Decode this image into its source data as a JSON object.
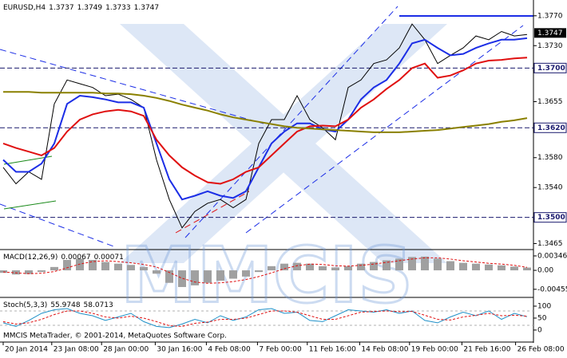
{
  "chart_data": [
    {
      "type": "line",
      "symbol": "EURUSD,H4",
      "ohlc": [
        1.3737,
        1.3749,
        1.3733,
        1.3747
      ],
      "x": [
        0,
        1,
        2,
        3,
        4,
        5,
        6,
        7,
        8,
        9,
        10,
        11,
        12,
        13,
        14,
        15,
        16,
        17,
        18,
        19,
        20,
        21,
        22,
        23,
        24,
        25,
        26,
        27,
        28,
        29,
        30,
        31,
        32,
        33,
        34,
        35,
        36,
        37,
        38,
        39,
        40,
        41
      ],
      "xlim": [
        -0.25,
        41.5
      ],
      "ylim": [
        1.3458,
        1.3789
      ],
      "yticks": [
        {
          "value": 1.377,
          "label": "1.3770"
        },
        {
          "value": 1.373,
          "label": "1.3730"
        },
        1.3655,
        {
          "value": 1.358,
          "label": "1.3580"
        },
        {
          "value": 1.354,
          "label": "1.3540"
        },
        1.3465
      ],
      "levels": [
        {
          "value": 1.37,
          "label": "1.3700"
        },
        {
          "value": 1.362,
          "label": "1.3620"
        },
        {
          "value": 1.35,
          "label": "1.3500"
        }
      ],
      "xticks": [
        {
          "value": 0,
          "label": "20 Jan 2014"
        },
        {
          "value": 3.8,
          "label": "23 Jan 08:00"
        },
        {
          "value": 7.7,
          "label": "28 Jan 00:00"
        },
        {
          "value": 11.9,
          "label": "30 Jan 16:00"
        },
        {
          "value": 15.9,
          "label": "4 Feb 08:00"
        },
        {
          "value": 19.9,
          "label": "7 Feb 00:00"
        },
        {
          "value": 23.8,
          "label": "11 Feb 16:00"
        },
        {
          "value": 27.9,
          "label": "14 Feb 08:00"
        },
        {
          "value": 31.8,
          "label": "19 Feb 00:00"
        },
        {
          "value": 35.9,
          "label": "21 Feb 16:00"
        },
        {
          "value": 40.1,
          "label": "26 Feb 08:00"
        }
      ],
      "series": [
        {
          "color": "#000000",
          "style": "solid",
          "values": [
            1.3567,
            1.3545,
            1.3561,
            1.3551,
            1.3652,
            1.3684,
            1.3679,
            1.3674,
            1.3663,
            1.3665,
            1.3658,
            1.3647,
            1.3577,
            1.3524,
            1.3486,
            1.3508,
            1.3519,
            1.3524,
            1.3513,
            1.3524,
            1.3599,
            1.3631,
            1.3631,
            1.3663,
            1.3631,
            1.362,
            1.3604,
            1.3674,
            1.3684,
            1.3706,
            1.3711,
            1.3727,
            1.3759,
            1.3738,
            1.3706,
            1.3717,
            1.3727,
            1.3743,
            1.3738,
            1.3749,
            1.3743,
            1.3745
          ]
        },
        {
          "color": "#1c2ee6",
          "style": "thick",
          "values": [
            1.3577,
            1.3561,
            1.3561,
            1.3572,
            1.3599,
            1.3652,
            1.3663,
            1.3661,
            1.3658,
            1.3654,
            1.3654,
            1.3647,
            1.3599,
            1.3551,
            1.3524,
            1.3529,
            1.3535,
            1.3529,
            1.3526,
            1.3535,
            1.3567,
            1.3599,
            1.3615,
            1.3626,
            1.3626,
            1.3618,
            1.3615,
            1.3631,
            1.3658,
            1.3674,
            1.3684,
            1.3706,
            1.3733,
            1.3738,
            1.3727,
            1.3717,
            1.3719,
            1.3727,
            1.3733,
            1.3738,
            1.3738,
            1.374
          ]
        },
        {
          "color": "#e01010",
          "style": "thick",
          "values": [
            1.3599,
            1.3593,
            1.3588,
            1.3583,
            1.3593,
            1.3615,
            1.3631,
            1.3638,
            1.3642,
            1.3644,
            1.3642,
            1.3636,
            1.3604,
            1.3583,
            1.3567,
            1.3556,
            1.3547,
            1.3545,
            1.3551,
            1.3561,
            1.3567,
            1.3583,
            1.3599,
            1.3615,
            1.3622,
            1.3623,
            1.3622,
            1.3631,
            1.3647,
            1.3658,
            1.3672,
            1.3684,
            1.37,
            1.3706,
            1.3687,
            1.369,
            1.3697,
            1.3706,
            1.371,
            1.3711,
            1.3713,
            1.3714
          ]
        },
        {
          "color": "#8a8000",
          "style": "thick",
          "values": [
            1.3668,
            1.3668,
            1.3668,
            1.3667,
            1.3667,
            1.3667,
            1.3667,
            1.3667,
            1.3666,
            1.3666,
            1.3665,
            1.3663,
            1.366,
            1.3656,
            1.3651,
            1.3647,
            1.3643,
            1.3638,
            1.3634,
            1.3631,
            1.3628,
            1.3625,
            1.3622,
            1.362,
            1.3619,
            1.3618,
            1.3617,
            1.3616,
            1.3615,
            1.3614,
            1.3614,
            1.3614,
            1.3615,
            1.3616,
            1.3617,
            1.3619,
            1.3621,
            1.3623,
            1.3625,
            1.3628,
            1.363,
            1.3633
          ]
        }
      ]
    },
    {
      "type": "bar",
      "name": "MACD(12,26,9)",
      "readout": [
        0.00067,
        0.00071
      ],
      "watermark": "MMCIS",
      "x": [
        0,
        1,
        2,
        3,
        4,
        5,
        6,
        7,
        8,
        9,
        10,
        11,
        12,
        13,
        14,
        15,
        16,
        17,
        18,
        19,
        20,
        21,
        22,
        23,
        24,
        25,
        26,
        27,
        28,
        29,
        30,
        31,
        32,
        33,
        34,
        35,
        36,
        37,
        38,
        39,
        40,
        41
      ],
      "xlim": [
        -0.25,
        41.5
      ],
      "ylim": [
        -0.0063,
        0.0046
      ],
      "yticks": [
        0.00346,
        {
          "value": 0,
          "label": "0.00"
        },
        -0.00455
      ],
      "series": [
        {
          "color": "#a0a0a0",
          "style": "bar",
          "values": [
            -0.0006,
            -0.001,
            -0.0009,
            -0.0004,
            0.0008,
            0.0025,
            0.0028,
            0.0025,
            0.002,
            0.0016,
            0.0013,
            0.0008,
            -0.0008,
            -0.003,
            -0.004,
            -0.0036,
            -0.003,
            -0.0025,
            -0.002,
            -0.0015,
            -0.0004,
            0.001,
            0.0016,
            0.0018,
            0.0016,
            0.001,
            0.0007,
            0.001,
            0.0016,
            0.002,
            0.0024,
            0.0028,
            0.0032,
            0.0033,
            0.0028,
            0.0022,
            0.0018,
            0.0016,
            0.0014,
            0.0012,
            0.0009,
            0.00067
          ]
        },
        {
          "color": "#e01010",
          "style": "dashed",
          "values": [
            -0.0004,
            -0.0006,
            -0.0008,
            -0.0007,
            -0.0003,
            0.0006,
            0.0015,
            0.0021,
            0.0023,
            0.0021,
            0.0018,
            0.0014,
            0.0008,
            -0.0005,
            -0.0019,
            -0.0028,
            -0.0031,
            -0.003,
            -0.0027,
            -0.0022,
            -0.0015,
            -0.0006,
            0.0004,
            0.0011,
            0.0015,
            0.0014,
            0.0011,
            0.001,
            0.0012,
            0.0015,
            0.0019,
            0.0023,
            0.0027,
            0.003,
            0.003,
            0.0027,
            0.0023,
            0.002,
            0.0017,
            0.0015,
            0.0012,
            0.00071
          ]
        }
      ]
    },
    {
      "type": "line",
      "name": "Stoch(5,3,3)",
      "readout": [
        55.9748,
        58.0713
      ],
      "footer": "MMCIS MetaTrader, © 2001-2014, MetaQuotes Software Corp.",
      "x": [
        0,
        1,
        2,
        3,
        4,
        5,
        6,
        7,
        8,
        9,
        10,
        11,
        12,
        13,
        14,
        15,
        16,
        17,
        18,
        19,
        20,
        21,
        22,
        23,
        24,
        25,
        26,
        27,
        28,
        29,
        30,
        31,
        32,
        33,
        34,
        35,
        36,
        37,
        38,
        39,
        40,
        41
      ],
      "xlim": [
        -0.25,
        41.5
      ],
      "ylim": [
        -47,
        130
      ],
      "yticks": [
        100,
        50,
        0
      ],
      "levels": [
        80,
        20
      ],
      "series": [
        {
          "color": "#1e90c8",
          "style": "solid",
          "values": [
            30,
            15,
            40,
            70,
            85,
            90,
            70,
            60,
            40,
            55,
            70,
            35,
            15,
            10,
            25,
            45,
            30,
            60,
            40,
            55,
            85,
            90,
            70,
            75,
            40,
            35,
            60,
            85,
            80,
            75,
            85,
            70,
            80,
            40,
            30,
            55,
            75,
            60,
            80,
            45,
            70,
            55.9748
          ]
        },
        {
          "color": "#e01010",
          "style": "dashed",
          "values": [
            35,
            25,
            30,
            45,
            65,
            80,
            80,
            70,
            55,
            50,
            58,
            50,
            35,
            18,
            15,
            28,
            33,
            45,
            45,
            50,
            65,
            80,
            80,
            75,
            60,
            45,
            45,
            60,
            75,
            78,
            80,
            77,
            78,
            62,
            45,
            42,
            55,
            62,
            70,
            60,
            62,
            58.0713
          ]
        }
      ]
    }
  ]
}
